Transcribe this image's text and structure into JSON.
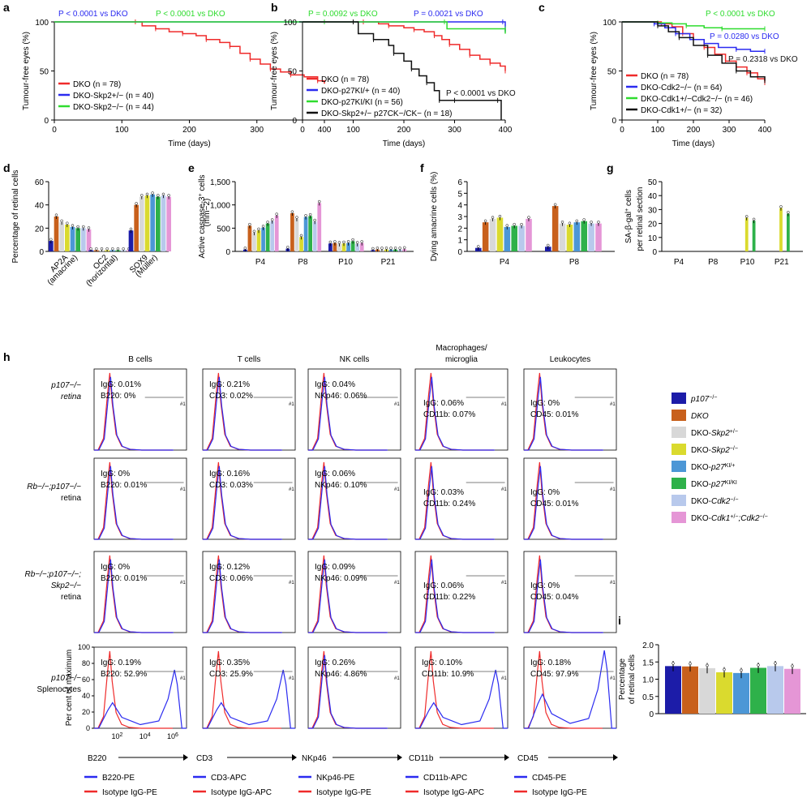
{
  "colors": {
    "red": "#ef2b2b",
    "blue": "#2b2bf0",
    "green": "#2fdc2f",
    "black": "#111111",
    "bars": [
      "#1c1ca8",
      "#c8601c",
      "#d8d8d8",
      "#dada2e",
      "#4c97d6",
      "#2eb14a",
      "#b8c9ec",
      "#e596d6"
    ],
    "p107": "#1c1ca8",
    "pe": "#2b2bf0",
    "iso": "#ef2b2b"
  },
  "panel_labels": [
    "a",
    "b",
    "c",
    "d",
    "e",
    "f",
    "g",
    "h",
    "i"
  ],
  "legend_bars": {
    "items": [
      {
        "base": "p107",
        "sup": "−/−",
        "sub": ""
      },
      {
        "base": "DKO",
        "sup": "",
        "sub": ""
      },
      {
        "base": "DKO-Skp2",
        "sup": "+/−",
        "sub": ""
      },
      {
        "base": "DKO-Skp2",
        "sup": "−/−",
        "sub": ""
      },
      {
        "base": "DKO-p27",
        "sup": "KI/+",
        "sub": ""
      },
      {
        "base": "DKO-p27",
        "sup": "KI/KI",
        "sub": ""
      },
      {
        "base": "DKO-Cdk2",
        "sup": "−/−",
        "sub": ""
      },
      {
        "base": "DKO-Cdk1",
        "sup": "+/−",
        "sub": ";Cdk2",
        "sup2": "−/−"
      }
    ]
  },
  "chart_data": [
    {
      "id": "a",
      "type": "line",
      "ylabel": "Tumour-free eyes (%)",
      "xlabel": "Time (days)",
      "xticks": [
        0,
        100,
        200,
        300,
        400
      ],
      "yticks": [
        0,
        50,
        100
      ],
      "xlim": [
        0,
        400
      ],
      "ylim": [
        0,
        100
      ],
      "series": [
        {
          "name": "DKO (n = 78)",
          "color": "red",
          "x": [
            0,
            120,
            130,
            150,
            170,
            190,
            210,
            225,
            245,
            260,
            275,
            290,
            305,
            320,
            335,
            350,
            370,
            390,
            400
          ],
          "y": [
            100,
            100,
            96,
            93,
            90,
            88,
            86,
            82,
            79,
            75,
            68,
            62,
            57,
            52,
            49,
            46,
            44,
            40,
            37
          ]
        },
        {
          "name": "DKO-Skp2+/− (n = 40)",
          "color": "blue",
          "x": [
            0,
            400
          ],
          "y": [
            100,
            100
          ]
        },
        {
          "name": "DKO-Skp2−/− (n = 44)",
          "color": "green",
          "x": [
            0,
            400
          ],
          "y": [
            100,
            100
          ]
        }
      ],
      "annotations": [
        {
          "text": "P < 0.0001 vs DKO",
          "color": "blue"
        },
        {
          "text": "P < 0.0001 vs DKO",
          "color": "green"
        }
      ]
    },
    {
      "id": "b",
      "type": "line",
      "ylabel": "Tumour-free eyes (%)",
      "xlabel": "Time (days)",
      "xticks": [
        0,
        100,
        200,
        300,
        400
      ],
      "yticks": [
        0,
        50,
        100
      ],
      "xlim": [
        0,
        400
      ],
      "ylim": [
        0,
        100
      ],
      "series": [
        {
          "name": "DKO (n = 78)",
          "color": "red",
          "x": [
            0,
            120,
            150,
            170,
            200,
            220,
            240,
            260,
            275,
            290,
            310,
            330,
            350,
            370,
            390,
            400
          ],
          "y": [
            100,
            100,
            98,
            96,
            94,
            92,
            90,
            86,
            82,
            77,
            72,
            66,
            62,
            58,
            55,
            50
          ]
        },
        {
          "name": "DKO-p27KI/+ (n = 40)",
          "color": "blue",
          "x": [
            0,
            395,
            400
          ],
          "y": [
            100,
            100,
            90
          ]
        },
        {
          "name": "DKO-p27KI/KI (n = 56)",
          "color": "green",
          "x": [
            0,
            280,
            285,
            400,
            400
          ],
          "y": [
            100,
            100,
            93,
            93,
            88
          ]
        },
        {
          "name": "DKO-Skp2+/− p27CK−/CK− (n = 18)",
          "color": "black",
          "x": [
            0,
            100,
            110,
            140,
            170,
            180,
            200,
            215,
            230,
            245,
            260,
            270,
            290,
            300,
            330,
            385,
            392
          ],
          "y": [
            100,
            100,
            88,
            82,
            76,
            68,
            60,
            52,
            45,
            38,
            30,
            20,
            20,
            20,
            20,
            20,
            0
          ]
        }
      ],
      "annotations": [
        {
          "text": "P = 0.0092 vs DKO",
          "color": "green"
        },
        {
          "text": "P = 0.0021 vs DKO",
          "color": "blue"
        },
        {
          "text": "P < 0.0001 vs DKO",
          "color": "black"
        }
      ]
    },
    {
      "id": "c",
      "type": "line",
      "ylabel": "Tumour-free eyes (%)",
      "xlabel": "Time (days)",
      "xticks": [
        0,
        100,
        200,
        300,
        400
      ],
      "yticks": [
        0,
        50,
        100
      ],
      "xlim": [
        0,
        400
      ],
      "ylim": [
        0,
        100
      ],
      "series": [
        {
          "name": "DKO (n = 78)",
          "color": "red",
          "x": [
            0,
            110,
            140,
            170,
            200,
            230,
            260,
            290,
            320,
            350,
            380,
            400
          ],
          "y": [
            100,
            98,
            95,
            88,
            82,
            74,
            67,
            60,
            54,
            48,
            42,
            38
          ]
        },
        {
          "name": "DKO-Cdk2−/− (n = 64)",
          "color": "blue",
          "x": [
            0,
            90,
            120,
            150,
            190,
            230,
            270,
            320,
            360,
            400
          ],
          "y": [
            100,
            98,
            94,
            88,
            82,
            78,
            74,
            72,
            70,
            70
          ]
        },
        {
          "name": "DKO-Cdk1+/−Cdk2−/− (n = 46)",
          "color": "green",
          "x": [
            0,
            100,
            140,
            180,
            230,
            280,
            340,
            400
          ],
          "y": [
            100,
            99,
            98,
            96,
            94,
            93,
            93,
            93
          ]
        },
        {
          "name": "DKO-Cdk1+/− (n = 32)",
          "color": "black",
          "x": [
            0,
            100,
            130,
            160,
            200,
            240,
            280,
            320,
            360,
            400
          ],
          "y": [
            100,
            96,
            90,
            84,
            76,
            66,
            58,
            50,
            44,
            40
          ]
        }
      ],
      "annotations": [
        {
          "text": "P < 0.0001 vs DKO",
          "color": "green"
        },
        {
          "text": "P = 0.0280 vs DKO",
          "color": "blue"
        },
        {
          "text": "P = 0.2318 vs DKO",
          "color": "black"
        }
      ]
    },
    {
      "id": "d",
      "type": "bar",
      "ylabel": "Percentage of retinal cells",
      "ylim": [
        0,
        60
      ],
      "yticks": [
        0,
        20,
        40,
        60
      ],
      "categories": [
        "AP2A (amacrine)",
        "OC2 (horizontal)",
        "SOX9 (Müller)"
      ],
      "series_values": [
        [
          9,
          1,
          18
        ],
        [
          30,
          1,
          40
        ],
        [
          25,
          1,
          47
        ],
        [
          23,
          1,
          48
        ],
        [
          21,
          1,
          49
        ],
        [
          20,
          1,
          47
        ],
        [
          20,
          1,
          48
        ],
        [
          19,
          1,
          47
        ]
      ],
      "marks": [
        "*",
        "*",
        "*",
        "*",
        "*",
        "*",
        "*",
        "*"
      ]
    },
    {
      "id": "e",
      "type": "bar",
      "ylabel": "Active caspase-3+ cells (mm−2)",
      "ylim": [
        0,
        1500
      ],
      "yticks": [
        0,
        500,
        1000,
        1500
      ],
      "categories": [
        "P4",
        "P8",
        "P10",
        "P21"
      ],
      "series_values": [
        [
          40,
          60,
          170,
          30
        ],
        [
          550,
          820,
          180,
          40
        ],
        [
          400,
          700,
          160,
          40
        ],
        [
          450,
          310,
          170,
          40
        ],
        [
          510,
          740,
          180,
          40
        ],
        [
          600,
          760,
          220,
          40
        ],
        [
          650,
          640,
          160,
          40
        ],
        [
          770,
          1040,
          180,
          50
        ]
      ]
    },
    {
      "id": "f",
      "type": "bar",
      "ylabel": "Dying amacrine cells (%)",
      "ylim": [
        0,
        6
      ],
      "yticks": [
        0,
        1,
        2,
        3,
        4,
        5,
        6
      ],
      "categories": [
        "P4",
        "P8"
      ],
      "series_values": [
        [
          0.3,
          0.4
        ],
        [
          2.5,
          3.9
        ],
        [
          2.8,
          2.4
        ],
        [
          2.9,
          2.3
        ],
        [
          2.1,
          2.5
        ],
        [
          2.2,
          2.6
        ],
        [
          2.2,
          2.4
        ],
        [
          2.8,
          2.4
        ]
      ]
    },
    {
      "id": "g",
      "type": "bar",
      "ylabel": "SA-β-gal+ cells per retinal section",
      "ylim": [
        0,
        50
      ],
      "yticks": [
        0,
        10,
        20,
        30,
        40,
        50
      ],
      "categories": [
        "P4",
        "P8",
        "P10",
        "P21"
      ],
      "series_values": [
        [
          0,
          0,
          0,
          0
        ],
        [
          0,
          0,
          0,
          0
        ],
        [
          0,
          0,
          0,
          0
        ],
        [
          0,
          0,
          24,
          31
        ],
        [
          0,
          0,
          0,
          0
        ],
        [
          0,
          0,
          22,
          27
        ],
        [
          0,
          0,
          0,
          0
        ],
        [
          0,
          0,
          0,
          0
        ]
      ]
    },
    {
      "id": "h",
      "type": "histogram-grid",
      "columns": [
        "B cells",
        "T cells",
        "NK cells",
        "Macrophages/ microglia",
        "Leukocytes"
      ],
      "markers": [
        "B220",
        "CD3",
        "NKp46",
        "CD11b",
        "CD45"
      ],
      "rows": [
        "p107−/− retina",
        "Rb−/−;p107−/− retina",
        "Rb−/−;p107−/−; Skp2−/− retina",
        "p107−/− Splenocytes"
      ],
      "ylabel": "Per cent of maximum",
      "yticks": [
        0,
        20,
        40,
        60,
        80,
        100
      ],
      "xticks": [
        "10^2",
        "10^4",
        "10^6"
      ],
      "stats": [
        [
          {
            "igg": "0.01%",
            "mark": "0%"
          },
          {
            "igg": "0.21%",
            "mark": "0.02%"
          },
          {
            "igg": "0.04%",
            "mark": "0.06%"
          },
          {
            "igg": "0.06%",
            "mark": "0.07%"
          },
          {
            "igg": "0%",
            "mark": "0.01%"
          }
        ],
        [
          {
            "igg": "0%",
            "mark": "0.01%"
          },
          {
            "igg": "0.16%",
            "mark": "0.03%"
          },
          {
            "igg": "0.06%",
            "mark": "0.10%"
          },
          {
            "igg": "0.03%",
            "mark": "0.24%"
          },
          {
            "igg": "0%",
            "mark": "0.01%"
          }
        ],
        [
          {
            "igg": "0%",
            "mark": "0.01%"
          },
          {
            "igg": "0.12%",
            "mark": "0.06%"
          },
          {
            "igg": "0.09%",
            "mark": "0.09%"
          },
          {
            "igg": "0.06%",
            "mark": "0.22%"
          },
          {
            "igg": "0%",
            "mark": "0.04%"
          }
        ],
        [
          {
            "igg": "0.19%",
            "mark": "52.9%"
          },
          {
            "igg": "0.35%",
            "mark": "25.9%"
          },
          {
            "igg": "0.26%",
            "mark": "4.86%"
          },
          {
            "igg": "0.10%",
            "mark": "10.9%"
          },
          {
            "igg": "0.18%",
            "mark": "97.9%"
          }
        ]
      ],
      "gate_label": "#1",
      "legend": [
        {
          "stain": "B220-PE",
          "iso": "Isotype IgG-PE"
        },
        {
          "stain": "CD3-APC",
          "iso": "Isotype IgG-APC"
        },
        {
          "stain": "NKp46-PE",
          "iso": "Isotype IgG-PE"
        },
        {
          "stain": "CD11b-APC",
          "iso": "Isotype IgG-APC"
        },
        {
          "stain": "CD45-PE",
          "iso": "Isotype IgG-PE"
        }
      ]
    },
    {
      "id": "i",
      "type": "bar",
      "ylabel": "Percentage of retinal cells",
      "ylim": [
        0,
        2
      ],
      "yticks": [
        0,
        0.5,
        1,
        1.5,
        2
      ],
      "ytick_labels": [
        "0",
        "0.5",
        "1.0",
        "1.5",
        "2.0"
      ],
      "values": [
        1.38,
        1.37,
        1.32,
        1.2,
        1.18,
        1.33,
        1.38,
        1.3
      ]
    }
  ]
}
